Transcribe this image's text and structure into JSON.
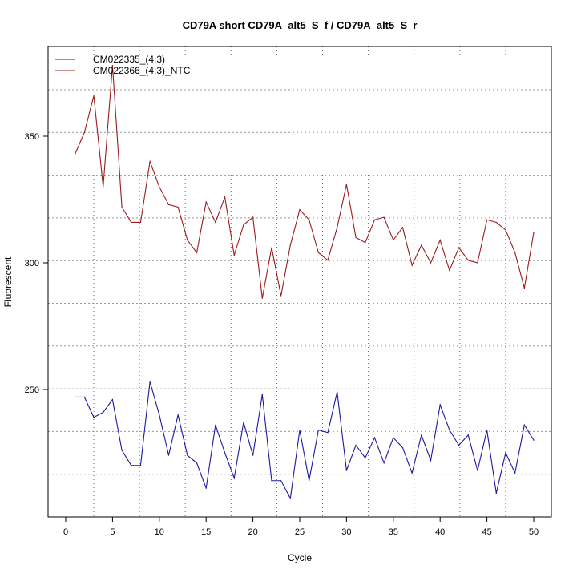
{
  "chart_data": {
    "type": "line",
    "title": "CD79A short CD79A_alt5_S_f / CD79A_alt5_S_r",
    "xlabel": "Cycle",
    "ylabel": "Fluorescent",
    "xlim": [
      -2,
      52
    ],
    "ylim": [
      190,
      385
    ],
    "xticks": [
      0,
      5,
      10,
      15,
      20,
      25,
      30,
      35,
      40,
      45,
      50
    ],
    "yticks": [
      250,
      300,
      350
    ],
    "grid": true,
    "legend_position": "top-left",
    "x": [
      1,
      2,
      3,
      4,
      5,
      6,
      7,
      8,
      9,
      10,
      11,
      12,
      13,
      14,
      15,
      16,
      17,
      18,
      19,
      20,
      21,
      22,
      23,
      24,
      25,
      26,
      27,
      28,
      29,
      30,
      31,
      32,
      33,
      34,
      35,
      36,
      37,
      38,
      39,
      40,
      41,
      42,
      43,
      44,
      45,
      46,
      47,
      48,
      49,
      50
    ],
    "series": [
      {
        "name": "CM022335_(4:3)",
        "color": "#1a1aa0",
        "values": [
          247,
          247,
          239,
          241,
          246,
          226,
          220,
          220,
          253,
          240,
          224,
          240,
          224,
          221,
          211,
          236,
          225,
          215,
          237,
          224,
          248,
          214,
          214,
          207,
          234,
          214,
          234,
          233,
          249,
          218,
          228,
          223,
          231,
          221,
          231,
          227,
          217,
          232,
          222,
          244,
          234,
          228,
          232,
          218,
          234,
          209,
          225,
          217,
          236,
          230
        ]
      },
      {
        "name": "CM022366_(4:3)_NTC",
        "color": "#9b1c1c",
        "values": [
          343,
          351.5,
          366,
          330,
          378,
          322,
          316,
          316,
          340,
          330,
          323,
          322,
          309,
          304,
          324,
          316,
          326,
          303,
          315,
          318,
          286,
          306,
          287,
          307,
          321,
          317,
          304,
          301,
          314,
          331,
          310,
          308,
          317,
          318,
          309,
          314,
          299,
          307,
          300,
          309,
          297,
          306,
          301,
          300,
          317,
          316,
          313,
          304,
          290,
          312
        ]
      }
    ]
  }
}
